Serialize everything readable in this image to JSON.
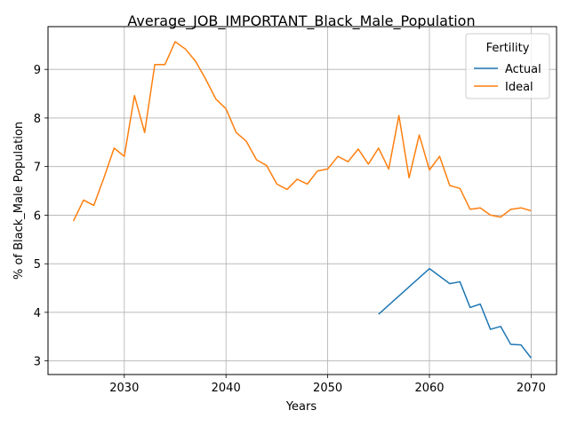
{
  "chart_data": {
    "type": "line",
    "title": "Average_JOB_IMPORTANT_Black_Male_Population",
    "xlabel": "Years",
    "ylabel": "% of Black_Male Population",
    "xlim": [
      2022.5,
      2072.5
    ],
    "ylim": [
      2.72,
      9.88
    ],
    "xticks": [
      2030,
      2040,
      2050,
      2060,
      2070
    ],
    "yticks": [
      3,
      4,
      5,
      6,
      7,
      8,
      9
    ],
    "grid": true,
    "legend": {
      "title": "Fertility",
      "position": "top-right"
    },
    "series": [
      {
        "name": "Actual",
        "color": "#1f77b4",
        "x": [
          2055,
          2060,
          2062,
          2063,
          2064,
          2065,
          2066,
          2067,
          2068,
          2069,
          2070
        ],
        "y": [
          3.96,
          4.9,
          4.59,
          4.63,
          4.1,
          4.17,
          3.65,
          3.71,
          3.34,
          3.33,
          3.06
        ]
      },
      {
        "name": "Ideal",
        "color": "#ff7f0e",
        "x": [
          2025,
          2026,
          2027,
          2028,
          2029,
          2030,
          2031,
          2032,
          2033,
          2034,
          2035,
          2036,
          2037,
          2038,
          2039,
          2040,
          2041,
          2042,
          2043,
          2044,
          2045,
          2046,
          2047,
          2048,
          2049,
          2050,
          2051,
          2052,
          2053,
          2054,
          2055,
          2056,
          2057,
          2058,
          2059,
          2060,
          2061,
          2062,
          2063,
          2064,
          2065,
          2066,
          2067,
          2068,
          2069,
          2070
        ],
        "y": [
          5.88,
          6.31,
          6.2,
          6.77,
          7.38,
          7.21,
          8.46,
          7.7,
          9.1,
          9.1,
          9.57,
          9.42,
          9.17,
          8.8,
          8.39,
          8.19,
          7.7,
          7.52,
          7.14,
          7.02,
          6.64,
          6.53,
          6.74,
          6.64,
          6.91,
          6.95,
          7.21,
          7.1,
          7.36,
          7.05,
          7.38,
          6.95,
          8.05,
          6.77,
          7.65,
          6.93,
          7.21,
          6.61,
          6.55,
          6.12,
          6.15,
          6.0,
          5.96,
          6.12,
          6.15,
          6.09
        ]
      }
    ]
  }
}
